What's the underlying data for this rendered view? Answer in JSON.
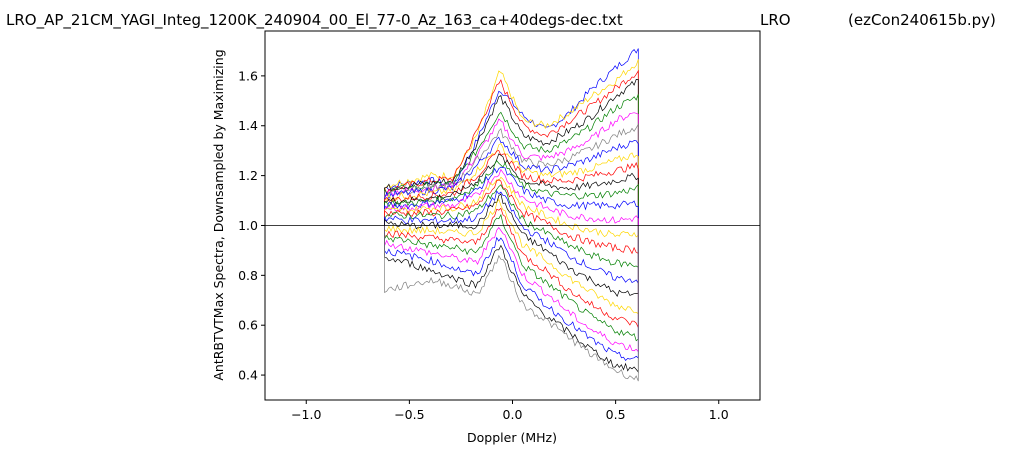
{
  "chart_data": {
    "type": "line",
    "title_left": "LRO_AP_21CM_YAGI_Integ_1200K_240904_00_El_77-0_Az_163_ca+40degs-dec.txt",
    "title_mid": "LRO",
    "title_right": "(ezCon240615b.py)",
    "xlabel": "Doppler (MHz)",
    "ylabel": "AntRBTVTMax Spectra, Downsampled by Maximizing",
    "xlim": [
      -1.2,
      1.2
    ],
    "ylim": [
      0.3,
      1.78
    ],
    "xticks": [
      -1.0,
      -0.5,
      0.0,
      0.5,
      1.0
    ],
    "xtick_labels": [
      "−1.0",
      "−0.5",
      "0.0",
      "0.5",
      "1.0"
    ],
    "yticks": [
      0.4,
      0.6,
      0.8,
      1.0,
      1.2,
      1.4,
      1.6
    ],
    "ytick_labels": [
      "0.4",
      "0.6",
      "0.8",
      "1.0",
      "1.2",
      "1.4",
      "1.6"
    ],
    "grid": false,
    "legend": "none",
    "reference_line": {
      "y": 1.0,
      "x_range": [
        -1.2,
        1.2
      ],
      "color": "#000000"
    },
    "spectra_x_range": [
      -0.62,
      0.61
    ],
    "colors": [
      "#000000",
      "#ff0000",
      "#0000ff",
      "#008000",
      "#ffd700",
      "#ff00ff",
      "#808080"
    ],
    "series": [
      {
        "values": [
          1.15,
          1.17,
          1.18,
          1.16,
          1.34,
          1.55,
          1.44,
          1.38,
          1.45,
          1.55,
          1.63,
          1.71
        ],
        "color": "#0000ff"
      },
      {
        "values": [
          1.16,
          1.18,
          1.2,
          1.2,
          1.36,
          1.62,
          1.42,
          1.4,
          1.45,
          1.52,
          1.58,
          1.66
        ],
        "color": "#ffd700"
      },
      {
        "values": [
          1.14,
          1.16,
          1.18,
          1.19,
          1.38,
          1.58,
          1.4,
          1.36,
          1.42,
          1.48,
          1.55,
          1.62
        ],
        "color": "#ff0000"
      },
      {
        "values": [
          1.15,
          1.16,
          1.17,
          1.18,
          1.33,
          1.52,
          1.36,
          1.33,
          1.38,
          1.44,
          1.52,
          1.58
        ],
        "color": "#000000"
      },
      {
        "values": [
          1.14,
          1.15,
          1.16,
          1.17,
          1.3,
          1.46,
          1.32,
          1.3,
          1.34,
          1.4,
          1.47,
          1.52
        ],
        "color": "#008000"
      },
      {
        "values": [
          1.13,
          1.14,
          1.15,
          1.16,
          1.28,
          1.42,
          1.28,
          1.27,
          1.3,
          1.35,
          1.42,
          1.46
        ],
        "color": "#ff00ff"
      },
      {
        "values": [
          1.13,
          1.14,
          1.15,
          1.16,
          1.26,
          1.38,
          1.26,
          1.24,
          1.27,
          1.31,
          1.36,
          1.4
        ],
        "color": "#808080"
      },
      {
        "values": [
          1.12,
          1.13,
          1.14,
          1.15,
          1.24,
          1.35,
          1.24,
          1.22,
          1.24,
          1.27,
          1.31,
          1.34
        ],
        "color": "#0000ff"
      },
      {
        "values": [
          1.11,
          1.12,
          1.13,
          1.14,
          1.22,
          1.32,
          1.22,
          1.2,
          1.21,
          1.23,
          1.26,
          1.29
        ],
        "color": "#ffd700"
      },
      {
        "values": [
          1.1,
          1.11,
          1.12,
          1.13,
          1.2,
          1.3,
          1.2,
          1.18,
          1.18,
          1.2,
          1.22,
          1.24
        ],
        "color": "#ff0000"
      },
      {
        "values": [
          1.1,
          1.1,
          1.11,
          1.12,
          1.18,
          1.28,
          1.18,
          1.16,
          1.15,
          1.16,
          1.18,
          1.2
        ],
        "color": "#000000"
      },
      {
        "values": [
          1.09,
          1.09,
          1.1,
          1.11,
          1.16,
          1.26,
          1.16,
          1.13,
          1.12,
          1.12,
          1.13,
          1.15
        ],
        "color": "#008000"
      },
      {
        "values": [
          1.08,
          1.08,
          1.09,
          1.1,
          1.14,
          1.24,
          1.14,
          1.1,
          1.08,
          1.08,
          1.08,
          1.09
        ],
        "color": "#0000ff"
      },
      {
        "values": [
          1.07,
          1.07,
          1.08,
          1.08,
          1.12,
          1.22,
          1.11,
          1.07,
          1.04,
          1.03,
          1.02,
          1.03
        ],
        "color": "#ff00ff"
      },
      {
        "values": [
          1.06,
          1.06,
          1.07,
          1.07,
          1.1,
          1.2,
          1.08,
          1.04,
          1.0,
          0.98,
          0.96,
          0.97
        ],
        "color": "#ffd700"
      },
      {
        "values": [
          1.05,
          1.05,
          1.05,
          1.06,
          1.08,
          1.18,
          1.05,
          1.01,
          0.96,
          0.93,
          0.91,
          0.9
        ],
        "color": "#ff0000"
      },
      {
        "values": [
          1.04,
          1.04,
          1.04,
          1.04,
          1.06,
          1.16,
          1.02,
          0.97,
          0.92,
          0.88,
          0.85,
          0.84
        ],
        "color": "#008000"
      },
      {
        "values": [
          1.03,
          1.02,
          1.02,
          1.02,
          1.03,
          1.14,
          0.99,
          0.94,
          0.88,
          0.83,
          0.79,
          0.78
        ],
        "color": "#0000ff"
      },
      {
        "values": [
          1.01,
          1.0,
          1.0,
          1.0,
          1.0,
          1.12,
          0.96,
          0.9,
          0.83,
          0.78,
          0.73,
          0.72
        ],
        "color": "#000000"
      },
      {
        "values": [
          0.99,
          0.98,
          0.98,
          0.97,
          0.97,
          1.1,
          0.92,
          0.86,
          0.79,
          0.73,
          0.68,
          0.66
        ],
        "color": "#ffd700"
      },
      {
        "values": [
          0.97,
          0.96,
          0.95,
          0.94,
          0.93,
          1.07,
          0.88,
          0.82,
          0.74,
          0.68,
          0.63,
          0.6
        ],
        "color": "#ff0000"
      },
      {
        "values": [
          0.95,
          0.94,
          0.92,
          0.91,
          0.89,
          1.04,
          0.84,
          0.77,
          0.7,
          0.63,
          0.58,
          0.55
        ],
        "color": "#008000"
      },
      {
        "values": [
          0.93,
          0.91,
          0.89,
          0.87,
          0.85,
          1.0,
          0.8,
          0.73,
          0.65,
          0.58,
          0.53,
          0.5
        ],
        "color": "#ff00ff"
      },
      {
        "values": [
          0.9,
          0.88,
          0.86,
          0.83,
          0.8,
          0.96,
          0.76,
          0.68,
          0.61,
          0.54,
          0.48,
          0.46
        ],
        "color": "#0000ff"
      },
      {
        "values": [
          0.87,
          0.85,
          0.82,
          0.79,
          0.76,
          0.92,
          0.72,
          0.64,
          0.57,
          0.5,
          0.44,
          0.42
        ],
        "color": "#000000"
      },
      {
        "values": [
          0.74,
          0.76,
          0.78,
          0.76,
          0.72,
          0.88,
          0.68,
          0.62,
          0.55,
          0.48,
          0.42,
          0.38
        ],
        "color": "#808080"
      }
    ]
  }
}
